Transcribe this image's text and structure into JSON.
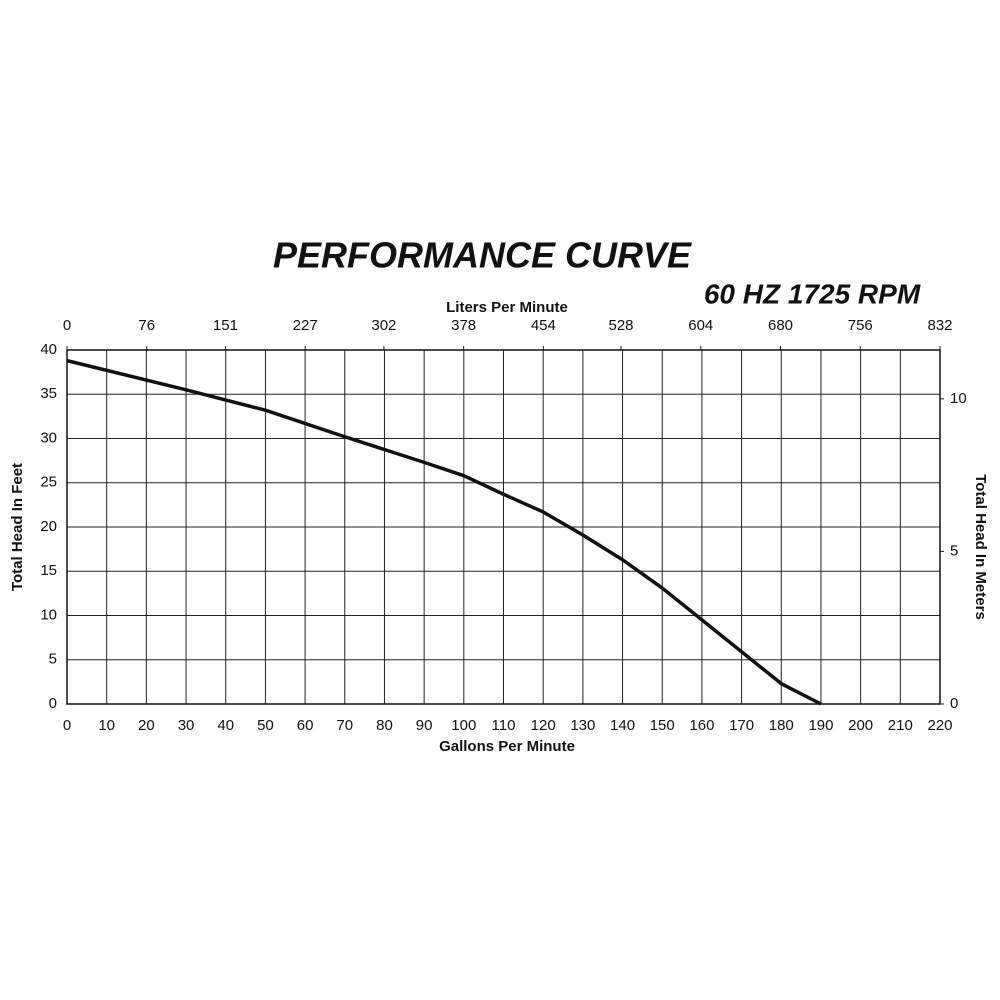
{
  "chart_data": {
    "type": "line",
    "title": "PERFORMANCE CURVE",
    "subtitle": "60 HZ  1725 RPM",
    "x_label": "Gallons Per Minute",
    "x2_label": "Liters Per Minute",
    "y_label": "Total Head In Feet",
    "y2_label": "Total Head In Meters",
    "x": [
      0,
      30,
      50,
      70,
      90,
      100,
      110,
      120,
      130,
      140,
      150,
      160,
      170,
      180,
      190
    ],
    "series": [
      {
        "color": "#111111",
        "values": [
          38.8,
          35.5,
          33.2,
          30.2,
          27.3,
          25.8,
          23.7,
          21.7,
          19.1,
          16.3,
          13.1,
          9.5,
          5.9,
          2.3,
          0
        ]
      }
    ],
    "xlim": [
      0,
      220
    ],
    "xticks": [
      0,
      10,
      20,
      30,
      40,
      50,
      60,
      70,
      80,
      90,
      100,
      110,
      120,
      130,
      140,
      150,
      160,
      170,
      180,
      190,
      200,
      210,
      220
    ],
    "x2lim": [
      0,
      832
    ],
    "x2ticks": [
      0,
      76,
      151,
      227,
      302,
      378,
      454,
      528,
      604,
      680,
      756,
      832
    ],
    "ylim": [
      0,
      40
    ],
    "yticks": [
      0,
      5,
      10,
      15,
      20,
      25,
      30,
      35,
      40
    ],
    "y2lim": [
      0,
      11.6
    ],
    "y2ticks": [
      0,
      5,
      10
    ],
    "grid": true
  }
}
